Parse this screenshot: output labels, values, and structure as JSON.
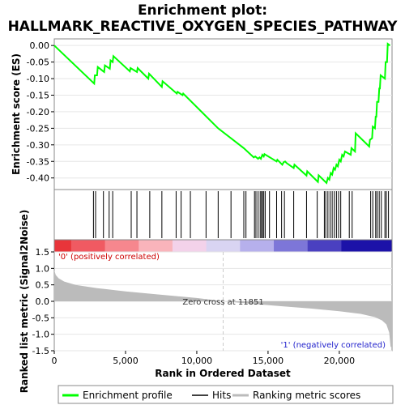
{
  "chart_data": [
    {
      "type": "line",
      "title": "Enrichment plot:",
      "subtitle": "HALLMARK_REACTIVE_OXYGEN_SPECIES_PATHWAY",
      "ylabel": "Enrichment score (ES)",
      "xlim": [
        0,
        23700
      ],
      "ylim": [
        -0.435,
        0.02
      ],
      "yticks": [
        0.0,
        -0.05,
        -0.1,
        -0.15,
        -0.2,
        -0.25,
        -0.3,
        -0.35,
        -0.4
      ],
      "ytick_labels": [
        "0.00",
        "-0.05",
        "-0.10",
        "-0.15",
        "-0.20",
        "-0.25",
        "-0.30",
        "-0.35",
        "-0.40"
      ],
      "series": [
        {
          "name": "Enrichment profile",
          "color": "#00ff00",
          "points": [
            [
              0,
              0.0
            ],
            [
              2800,
              -0.115
            ],
            [
              2850,
              -0.09
            ],
            [
              3000,
              -0.09
            ],
            [
              3050,
              -0.065
            ],
            [
              3500,
              -0.08
            ],
            [
              3550,
              -0.06
            ],
            [
              3900,
              -0.07
            ],
            [
              3950,
              -0.045
            ],
            [
              4100,
              -0.05
            ],
            [
              4150,
              -0.032
            ],
            [
              5300,
              -0.078
            ],
            [
              5350,
              -0.068
            ],
            [
              5800,
              -0.08
            ],
            [
              5850,
              -0.068
            ],
            [
              6600,
              -0.1
            ],
            [
              6650,
              -0.085
            ],
            [
              7550,
              -0.125
            ],
            [
              7600,
              -0.108
            ],
            [
              8600,
              -0.145
            ],
            [
              8650,
              -0.14
            ],
            [
              9000,
              -0.15
            ],
            [
              9050,
              -0.145
            ],
            [
              11500,
              -0.25
            ],
            [
              13300,
              -0.31
            ],
            [
              14000,
              -0.338
            ],
            [
              14100,
              -0.335
            ],
            [
              14300,
              -0.342
            ],
            [
              14400,
              -0.338
            ],
            [
              14500,
              -0.342
            ],
            [
              14600,
              -0.33
            ],
            [
              14700,
              -0.335
            ],
            [
              14750,
              -0.328
            ],
            [
              15600,
              -0.35
            ],
            [
              15650,
              -0.345
            ],
            [
              16000,
              -0.36
            ],
            [
              16100,
              -0.352
            ],
            [
              16200,
              -0.35
            ],
            [
              16300,
              -0.355
            ],
            [
              16800,
              -0.37
            ],
            [
              16850,
              -0.36
            ],
            [
              17700,
              -0.393
            ],
            [
              17750,
              -0.38
            ],
            [
              18500,
              -0.412
            ],
            [
              18550,
              -0.392
            ],
            [
              19100,
              -0.415
            ],
            [
              19200,
              -0.4
            ],
            [
              19300,
              -0.405
            ],
            [
              19400,
              -0.385
            ],
            [
              19500,
              -0.39
            ],
            [
              19600,
              -0.37
            ],
            [
              19700,
              -0.375
            ],
            [
              19800,
              -0.36
            ],
            [
              19900,
              -0.365
            ],
            [
              20000,
              -0.345
            ],
            [
              20100,
              -0.35
            ],
            [
              20200,
              -0.33
            ],
            [
              20300,
              -0.335
            ],
            [
              20400,
              -0.32
            ],
            [
              20800,
              -0.33
            ],
            [
              20850,
              -0.31
            ],
            [
              21100,
              -0.32
            ],
            [
              21150,
              -0.265
            ],
            [
              22100,
              -0.305
            ],
            [
              22150,
              -0.285
            ],
            [
              22300,
              -0.28
            ],
            [
              22350,
              -0.245
            ],
            [
              22500,
              -0.25
            ],
            [
              22550,
              -0.215
            ],
            [
              22600,
              -0.215
            ],
            [
              22650,
              -0.17
            ],
            [
              22750,
              -0.17
            ],
            [
              22800,
              -0.13
            ],
            [
              22850,
              -0.13
            ],
            [
              22900,
              -0.09
            ],
            [
              23200,
              -0.1
            ],
            [
              23250,
              -0.05
            ],
            [
              23350,
              -0.05
            ],
            [
              23400,
              0.005
            ],
            [
              23550,
              0.0
            ]
          ]
        }
      ]
    },
    {
      "type": "scatter",
      "name": "Hits",
      "hits": [
        2750,
        2900,
        3450,
        3850,
        4100,
        5400,
        5800,
        6700,
        7550,
        8550,
        8900,
        9550,
        10650,
        11500,
        12400,
        13300,
        13450,
        14050,
        14150,
        14300,
        14450,
        14550,
        14600,
        14700,
        14800,
        15100,
        15600,
        15950,
        16150,
        16800,
        17700,
        18450,
        18950,
        19050,
        19200,
        19350,
        19500,
        19650,
        19800,
        19950,
        20100,
        20700,
        20900,
        22200,
        22350,
        22550,
        22650,
        22800,
        22950,
        23200,
        23300,
        23450
      ]
    },
    {
      "type": "heatmap",
      "labels_positive": "'0' (positively correlated)",
      "labels_negative": "'1' (negatively correlated)",
      "colors": [
        "#e8353a",
        "#f05a62",
        "#f6878e",
        "#f9b4bb",
        "#f3d2ea",
        "#d9d4f2",
        "#b6b0ec",
        "#7d76d8",
        "#4a40c0",
        "#1c12a8"
      ],
      "segment_fractions": [
        0.05,
        0.15,
        0.25,
        0.35,
        0.45,
        0.55,
        0.65,
        0.75,
        0.85,
        1.0
      ]
    },
    {
      "type": "area",
      "ylabel": "Ranked list metric (Signal2Noise)",
      "xlabel": "Rank in Ordered Dataset",
      "xlim": [
        0,
        23700
      ],
      "ylim": [
        -1.5,
        1.5
      ],
      "xticks": [
        0,
        5000,
        10000,
        15000,
        20000
      ],
      "xtick_labels": [
        "0",
        "5,000",
        "10,000",
        "15,000",
        "20,000"
      ],
      "yticks": [
        1.5,
        1.0,
        0.5,
        0.0,
        -0.5,
        -1.0,
        -1.5
      ],
      "ytick_labels": [
        "1.5",
        "1.0",
        "0.5",
        "0.0",
        "-0.5",
        "-1.0",
        "-1.5"
      ],
      "zero_cross": 11851,
      "zero_cross_label": "Zero cross at 11851",
      "color": "#bbbbbb",
      "points": [
        [
          0,
          0.95
        ],
        [
          100,
          0.8
        ],
        [
          300,
          0.7
        ],
        [
          700,
          0.6
        ],
        [
          1500,
          0.5
        ],
        [
          3000,
          0.4
        ],
        [
          5000,
          0.3
        ],
        [
          7500,
          0.2
        ],
        [
          10000,
          0.1
        ],
        [
          11851,
          0.0
        ],
        [
          14000,
          -0.08
        ],
        [
          16000,
          -0.15
        ],
        [
          18000,
          -0.22
        ],
        [
          20000,
          -0.3
        ],
        [
          21500,
          -0.38
        ],
        [
          22500,
          -0.48
        ],
        [
          23000,
          -0.58
        ],
        [
          23300,
          -0.7
        ],
        [
          23500,
          -0.95
        ],
        [
          23600,
          -1.38
        ],
        [
          23700,
          -1.4
        ]
      ]
    }
  ],
  "legend": {
    "items": [
      {
        "label": "Enrichment profile",
        "color": "#00ff00"
      },
      {
        "label": "Hits",
        "color": "#000000"
      },
      {
        "label": "Ranking metric scores",
        "color": "#bbbbbb"
      }
    ]
  }
}
